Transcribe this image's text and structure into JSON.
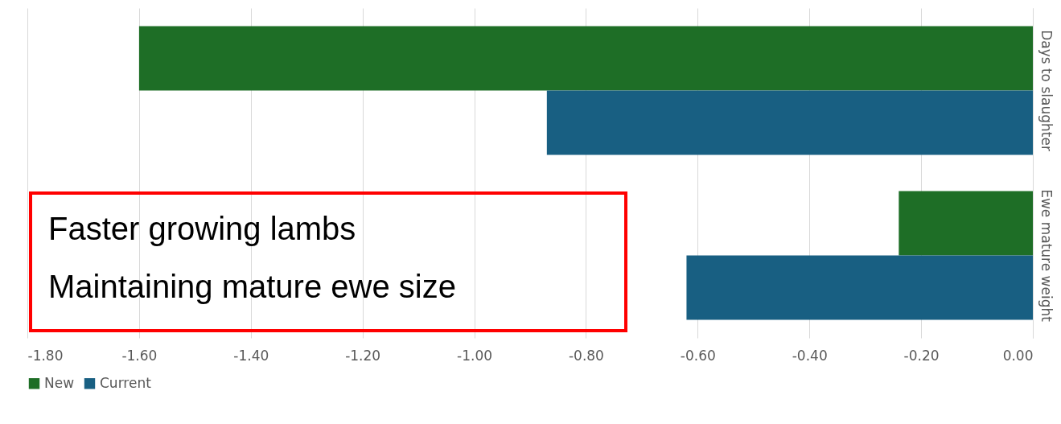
{
  "chart_data": {
    "type": "bar",
    "orientation": "horizontal",
    "categories": [
      "Days to slaughter",
      "Ewe mature weight"
    ],
    "series": [
      {
        "name": "New",
        "color": "#1e6e26",
        "values": [
          -1.6,
          -0.24
        ]
      },
      {
        "name": "Current",
        "color": "#185f82",
        "values": [
          -0.87,
          -0.62
        ]
      }
    ],
    "xlim": [
      -1.8,
      0
    ],
    "xticks": [
      {
        "value": -1.8,
        "label": "-1.80"
      },
      {
        "value": -1.6,
        "label": "-1.60"
      },
      {
        "value": -1.4,
        "label": "-1.40"
      },
      {
        "value": -1.2,
        "label": "-1.20"
      },
      {
        "value": -1.0,
        "label": "-1.00"
      },
      {
        "value": -0.8,
        "label": "-0.80"
      },
      {
        "value": -0.6,
        "label": "-0.60"
      },
      {
        "value": -0.4,
        "label": "-0.40"
      },
      {
        "value": -0.2,
        "label": "-0.20"
      },
      {
        "value": 0,
        "label": "0.00"
      }
    ],
    "grid": "x",
    "legend": "bottom",
    "annotations": [
      "Faster growing lambs",
      "Maintaining mature ewe size"
    ]
  }
}
